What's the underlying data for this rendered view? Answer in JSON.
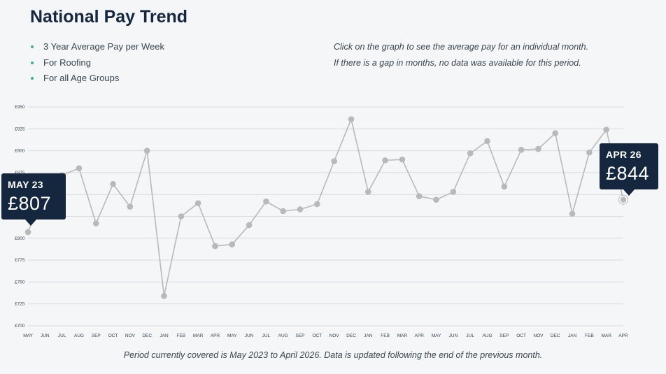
{
  "title": "National Pay Trend",
  "bullets": [
    "3 Year Average Pay per Week",
    "For Roofing",
    "For all Age Groups"
  ],
  "notes": [
    "Click on the graph to see the average pay for an individual month.",
    "If there is a gap in months, no data was available for this period."
  ],
  "footer": "Period currently covered is May 2023 to April 2026. Data is updated following the end of the previous month.",
  "callouts": {
    "start": {
      "month": "MAY 23",
      "value": "£807"
    },
    "end": {
      "month": "APR 26",
      "value": "£844"
    }
  },
  "colors": {
    "line": "#b9b9b9",
    "point": "#b9b9b9",
    "grid": "#d7dadd",
    "callout_bg": "#15263f",
    "bullet": "#38b08a"
  },
  "chart_data": {
    "type": "line",
    "title": "",
    "xlabel": "",
    "ylabel": "",
    "ylim": [
      700,
      950
    ],
    "yticks": [
      "£950",
      "£925",
      "£900",
      "£875",
      "£850",
      "£825",
      "£800",
      "£775",
      "£750",
      "£725",
      "£700"
    ],
    "ytick_values": [
      950,
      925,
      900,
      875,
      850,
      825,
      800,
      775,
      750,
      725,
      700
    ],
    "grid": true,
    "categories": [
      "MAY",
      "JUN",
      "JUL",
      "AUG",
      "SEP",
      "OCT",
      "NOV",
      "DEC",
      "JAN",
      "FEB",
      "MAR",
      "APR",
      "MAY",
      "JUN",
      "JUL",
      "AUG",
      "SEP",
      "OCT",
      "NOV",
      "DEC",
      "JAN",
      "FEB",
      "MAR",
      "APR",
      "MAY",
      "JUN",
      "JUL",
      "AUG",
      "SEP",
      "OCT",
      "NOV",
      "DEC",
      "JAN",
      "FEB",
      "MAR",
      "APR"
    ],
    "series": [
      {
        "values": [
          807,
          857,
          872,
          880,
          817,
          862,
          836,
          900,
          734,
          825,
          840,
          791,
          793,
          815,
          842,
          831,
          833,
          839,
          888,
          936,
          853,
          889,
          890,
          848,
          844,
          853,
          897,
          911,
          859,
          901,
          902,
          920,
          828,
          898,
          924,
          844
        ]
      }
    ]
  }
}
